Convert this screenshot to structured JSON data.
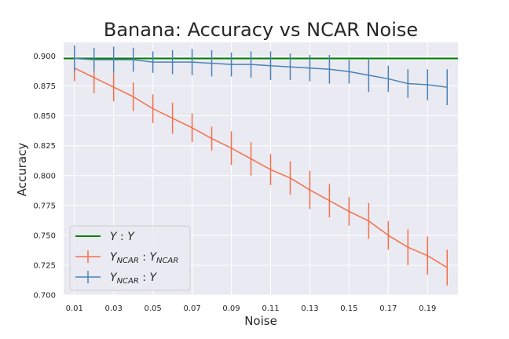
{
  "chart_data": {
    "type": "line",
    "title": "Banana: Accuracy vs NCAR Noise",
    "xlabel": "Noise",
    "ylabel": "Accuracy",
    "x": [
      0.01,
      0.02,
      0.03,
      0.04,
      0.05,
      0.06,
      0.07,
      0.08,
      0.09,
      0.1,
      0.11,
      0.12,
      0.13,
      0.14,
      0.15,
      0.16,
      0.17,
      0.18,
      0.19,
      0.2
    ],
    "xticks": [
      0.01,
      0.03,
      0.05,
      0.07,
      0.09,
      0.11,
      0.13,
      0.15,
      0.17,
      0.19
    ],
    "xtick_labels": [
      "0.01",
      "0.03",
      "0.05",
      "0.07",
      "0.09",
      "0.11",
      "0.13",
      "0.15",
      "0.17",
      "0.19"
    ],
    "xlim": [
      0.0045,
      0.2055
    ],
    "ylim": [
      0.7,
      0.9115
    ],
    "yticks": [
      0.7,
      0.725,
      0.75,
      0.775,
      0.8,
      0.825,
      0.85,
      0.875,
      0.9
    ],
    "ytick_labels": [
      "0.700",
      "0.725",
      "0.750",
      "0.775",
      "0.800",
      "0.825",
      "0.850",
      "0.875",
      "0.900"
    ],
    "grid": true,
    "legend_placement": "lower-left",
    "reference_lines": [
      {
        "name": "Y : Y",
        "y": 0.898,
        "color": "#008000"
      }
    ],
    "series": [
      {
        "name": "Y_NCAR : Y_NCAR",
        "label_main": "Y",
        "label_sub": "NCAR",
        "label_sep": " : ",
        "color": "#f4704a",
        "values": [
          0.89,
          0.882,
          0.874,
          0.866,
          0.856,
          0.848,
          0.84,
          0.831,
          0.823,
          0.814,
          0.805,
          0.798,
          0.788,
          0.779,
          0.77,
          0.762,
          0.75,
          0.74,
          0.733,
          0.723
        ],
        "errors": [
          0.011,
          0.013,
          0.012,
          0.012,
          0.012,
          0.013,
          0.012,
          0.01,
          0.014,
          0.014,
          0.013,
          0.014,
          0.016,
          0.014,
          0.012,
          0.015,
          0.012,
          0.015,
          0.016,
          0.015
        ]
      },
      {
        "name": "Y_NCAR : Y",
        "label_main": "Y",
        "label_sub": "NCAR",
        "label_sep": " : ",
        "label_tail": "Y",
        "color": "#4a82b7",
        "values": [
          0.898,
          0.897,
          0.897,
          0.897,
          0.895,
          0.895,
          0.895,
          0.894,
          0.893,
          0.893,
          0.892,
          0.891,
          0.89,
          0.889,
          0.887,
          0.884,
          0.881,
          0.877,
          0.876,
          0.874
        ],
        "errors": [
          0.011,
          0.01,
          0.011,
          0.01,
          0.009,
          0.01,
          0.011,
          0.011,
          0.01,
          0.011,
          0.012,
          0.011,
          0.011,
          0.012,
          0.01,
          0.014,
          0.011,
          0.012,
          0.013,
          0.015
        ]
      }
    ]
  },
  "legend": {
    "ref_main": "Y",
    "ref_sep": " : ",
    "ref_tail": "Y"
  }
}
